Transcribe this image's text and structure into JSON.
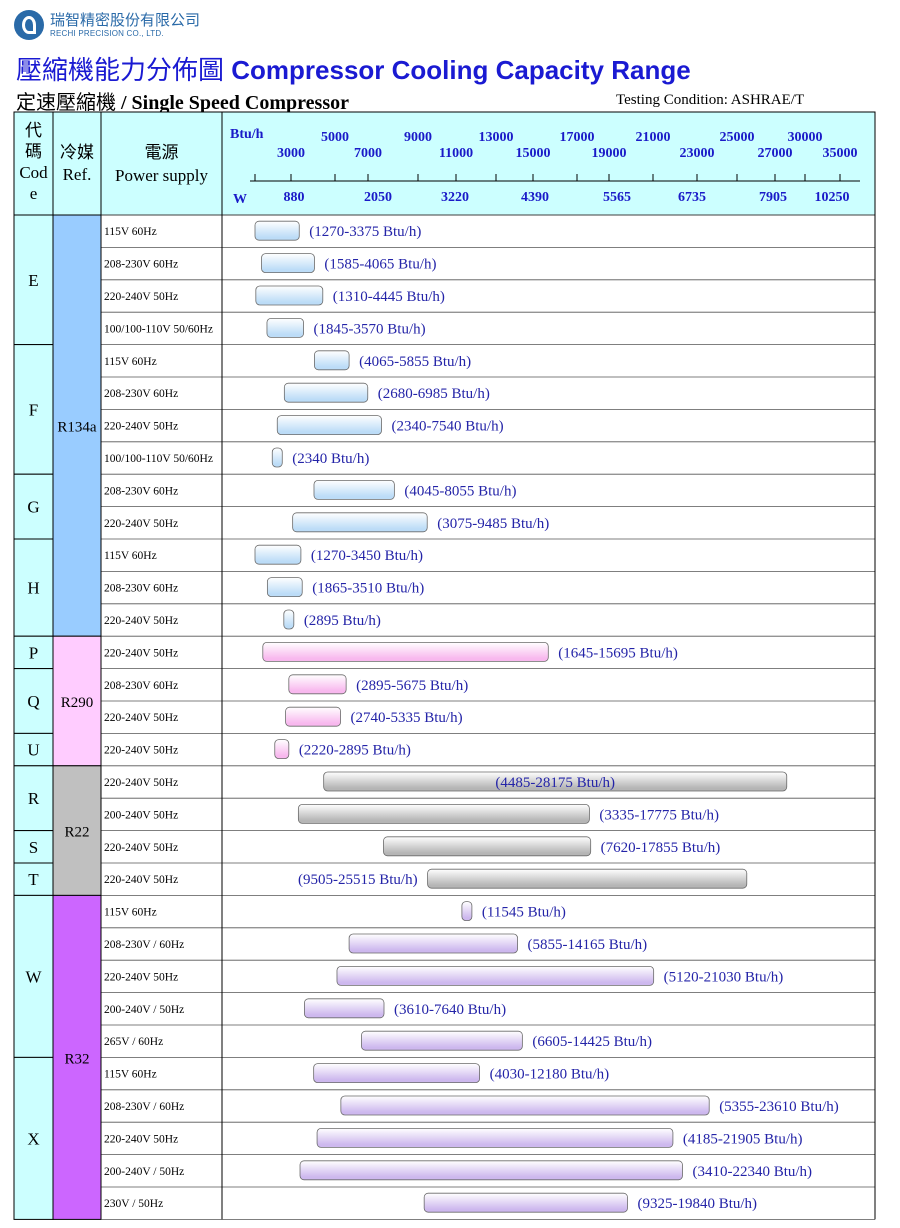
{
  "header": {
    "company_cn": "瑞智精密股份有限公司",
    "company_en": "RECHI PRECISION CO., LTD.",
    "title_cn": "壓縮機能力分佈圖",
    "title_en": "Compressor Cooling Capacity Range",
    "subtitle_cn": "定速壓縮機",
    "subtitle_en": "/ Single Speed Compressor",
    "testing": "Testing Condition: ASHRAE/T"
  },
  "table_headers": {
    "code": [
      "代",
      "碼",
      "Cod",
      "e"
    ],
    "ref": [
      "冷媒",
      "Ref."
    ],
    "power": [
      "電源",
      "Power supply"
    ]
  },
  "colors": {
    "header_bg": "#ccffff",
    "code_bg": "#ccffff",
    "R134a": "#99ccff",
    "R290": "#ffccff",
    "R22": "#c0c0c0",
    "R32": "#cc66ff",
    "bar_R134a": "#bcdcf7",
    "bar_R290": "#f8b8ee",
    "bar_R22": "#b5b5b5",
    "bar_R32": "#cdb8ee",
    "label": "#2424a8"
  },
  "chart_data": {
    "type": "bar",
    "orientation": "horizontal-range",
    "x_unit_top": "Btu/h",
    "x_unit_bottom": "W",
    "btu_ticks_upper": [
      "5000",
      "9000",
      "13000",
      "17000",
      "21000",
      "25000",
      "30000"
    ],
    "btu_ticks_lower": [
      "3000",
      "7000",
      "11000",
      "15000",
      "19000",
      "23000",
      "27000",
      "35000"
    ],
    "watt_ticks": [
      "880",
      "2050",
      "3220",
      "4390",
      "5565",
      "6735",
      "7905",
      "10250"
    ],
    "groups": [
      {
        "code": "E",
        "rows": [
          0,
          1,
          2,
          3
        ]
      },
      {
        "code": "F",
        "rows": [
          4,
          5,
          6,
          7
        ]
      },
      {
        "code": "G",
        "rows": [
          8,
          9
        ]
      },
      {
        "code": "H",
        "rows": [
          10,
          11,
          12
        ]
      },
      {
        "code": "P",
        "rows": [
          13
        ]
      },
      {
        "code": "Q",
        "rows": [
          14,
          15
        ]
      },
      {
        "code": "U",
        "rows": [
          16
        ]
      },
      {
        "code": "R",
        "rows": [
          17,
          18
        ]
      },
      {
        "code": "S",
        "rows": [
          19
        ]
      },
      {
        "code": "T",
        "rows": [
          20
        ]
      },
      {
        "code": "W",
        "rows": [
          21,
          22,
          23,
          24,
          25
        ]
      },
      {
        "code": "X",
        "rows": [
          26,
          27,
          28,
          29,
          30
        ]
      }
    ],
    "refrigerants": [
      {
        "name": "R134a",
        "rows": [
          0,
          12
        ]
      },
      {
        "name": "R290",
        "rows": [
          13,
          16
        ]
      },
      {
        "name": "R22",
        "rows": [
          17,
          20
        ]
      },
      {
        "name": "R32",
        "rows": [
          21,
          30
        ]
      }
    ],
    "rows": [
      {
        "power": "115V  60Hz",
        "range": [
          1270,
          3375
        ],
        "label": "(1270-3375 Btu/h)",
        "ref": "R134a"
      },
      {
        "power": "208-230V  60Hz",
        "range": [
          1585,
          4065
        ],
        "label": "(1585-4065 Btu/h)",
        "ref": "R134a"
      },
      {
        "power": "220-240V  50Hz",
        "range": [
          1310,
          4445
        ],
        "label": "(1310-4445 Btu/h)",
        "ref": "R134a"
      },
      {
        "power": "100/100-110V  50/60Hz",
        "range": [
          1845,
          3570
        ],
        "label": "(1845-3570 Btu/h)",
        "ref": "R134a"
      },
      {
        "power": "115V  60Hz",
        "range": [
          4065,
          5855
        ],
        "label": "(4065-5855 Btu/h)",
        "ref": "R134a"
      },
      {
        "power": "208-230V  60Hz",
        "range": [
          2680,
          6985
        ],
        "label": "(2680-6985 Btu/h)",
        "ref": "R134a"
      },
      {
        "power": "220-240V  50Hz",
        "range": [
          2340,
          7540
        ],
        "label": "(2340-7540 Btu/h)",
        "ref": "R134a"
      },
      {
        "power": "100/100-110V  50/60Hz",
        "range": [
          2340,
          2340
        ],
        "label": "(2340 Btu/h)",
        "ref": "R134a"
      },
      {
        "power": "208-230V  60Hz",
        "range": [
          4045,
          8055
        ],
        "label": "(4045-8055 Btu/h)",
        "ref": "R134a"
      },
      {
        "power": "220-240V  50Hz",
        "range": [
          3075,
          9485
        ],
        "label": "(3075-9485 Btu/h)",
        "ref": "R134a"
      },
      {
        "power": "115V  60Hz",
        "range": [
          1270,
          3450
        ],
        "label": "(1270-3450 Btu/h)",
        "ref": "R134a"
      },
      {
        "power": "208-230V  60Hz",
        "range": [
          1865,
          3510
        ],
        "label": "(1865-3510 Btu/h)",
        "ref": "R134a"
      },
      {
        "power": "220-240V  50Hz",
        "range": [
          2895,
          2895
        ],
        "label": "(2895 Btu/h)",
        "ref": "R134a"
      },
      {
        "power": "220-240V  50Hz",
        "range": [
          1645,
          15695
        ],
        "label": "(1645-15695 Btu/h)",
        "ref": "R290"
      },
      {
        "power": "208-230V  60Hz",
        "range": [
          2895,
          5675
        ],
        "label": "(2895-5675 Btu/h)",
        "ref": "R290"
      },
      {
        "power": "220-240V  50Hz",
        "range": [
          2740,
          5335
        ],
        "label": "(2740-5335 Btu/h)",
        "ref": "R290"
      },
      {
        "power": "220-240V  50Hz",
        "range": [
          2220,
          2895
        ],
        "label": "(2220-2895 Btu/h)",
        "ref": "R290"
      },
      {
        "power": "220-240V  50Hz",
        "range": [
          4485,
          28175
        ],
        "label": "(4485-28175 Btu/h)",
        "ref": "R22"
      },
      {
        "power": "200-240V  50Hz",
        "range": [
          3335,
          17775
        ],
        "label": "(3335-17775 Btu/h)",
        "ref": "R22"
      },
      {
        "power": "220-240V  50Hz",
        "range": [
          7620,
          17855
        ],
        "label": "(7620-17855 Btu/h)",
        "ref": "R22"
      },
      {
        "power": "220-240V  50Hz",
        "range": [
          9505,
          25515
        ],
        "label": "(9505-25515 Btu/h)",
        "ref": "R22"
      },
      {
        "power": "115V  60Hz",
        "range": [
          11545,
          11545
        ],
        "label": "(11545 Btu/h)",
        "ref": "R32"
      },
      {
        "power": "208-230V / 60Hz",
        "range": [
          5855,
          14165
        ],
        "label": "(5855-14165 Btu/h)",
        "ref": "R32"
      },
      {
        "power": "220-240V  50Hz",
        "range": [
          5120,
          21030
        ],
        "label": "(5120-21030 Btu/h)",
        "ref": "R32"
      },
      {
        "power": "200-240V / 50Hz",
        "range": [
          3610,
          7640
        ],
        "label": "(3610-7640 Btu/h)",
        "ref": "R32"
      },
      {
        "power": "265V / 60Hz",
        "range": [
          6605,
          14425
        ],
        "label": "(6605-14425 Btu/h)",
        "ref": "R32"
      },
      {
        "power": "115V  60Hz",
        "range": [
          4030,
          12180
        ],
        "label": "(4030-12180 Btu/h)",
        "ref": "R32"
      },
      {
        "power": "208-230V / 60Hz",
        "range": [
          5355,
          23610
        ],
        "label": "(5355-23610 Btu/h)",
        "ref": "R32"
      },
      {
        "power": "220-240V  50Hz",
        "range": [
          4185,
          21905
        ],
        "label": "(4185-21905 Btu/h)",
        "ref": "R32"
      },
      {
        "power": "200-240V / 50Hz",
        "range": [
          3410,
          22340
        ],
        "label": "(3410-22340 Btu/h)",
        "ref": "R32"
      },
      {
        "power": "230V / 50Hz",
        "range": [
          9325,
          19840
        ],
        "label": "(9325-19840 Btu/h)",
        "ref": "R32"
      }
    ]
  }
}
